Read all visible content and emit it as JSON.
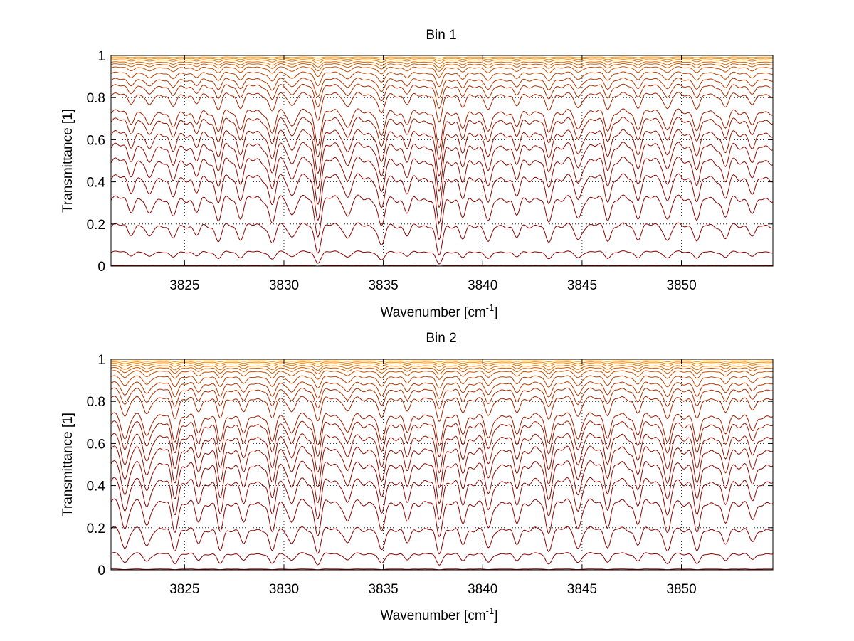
{
  "chart_data": [
    {
      "type": "line",
      "title": "Bin 1",
      "xlabel": "Wavenumber [cm",
      "xlabel_sup": "-1",
      "xlabel_end": "]",
      "ylabel": "Transmittance [1]",
      "xlim": [
        3821.3,
        3854.6
      ],
      "ylim": [
        0,
        1
      ],
      "grid": "dotted",
      "x_ticks": [
        3825,
        3830,
        3835,
        3840,
        3845,
        3850
      ],
      "x_tick_labels": [
        "3825",
        "3830",
        "3835",
        "3840",
        "3845",
        "3850"
      ],
      "y_ticks": [
        0,
        0.2,
        0.4,
        0.6,
        0.8,
        1
      ],
      "y_tick_labels": [
        "0",
        "0.2",
        "0.4",
        "0.6",
        "0.8",
        "1"
      ],
      "curve_levels": [
        0.003,
        0.07,
        0.2,
        0.33,
        0.43,
        0.51,
        0.58,
        0.64,
        0.7,
        0.74,
        0.82,
        0.86,
        0.89,
        0.92,
        0.945,
        0.96,
        0.97,
        0.98,
        0.987,
        0.993
      ],
      "absorption_lines": [
        {
          "x": 3822.3,
          "depth": 0.3
        },
        {
          "x": 3823.2,
          "depth": 0.5
        },
        {
          "x": 3824.4,
          "depth": 0.55
        },
        {
          "x": 3825.6,
          "depth": 0.4
        },
        {
          "x": 3826.7,
          "depth": 0.6
        },
        {
          "x": 3827.8,
          "depth": 0.5
        },
        {
          "x": 3829.4,
          "depth": 0.7
        },
        {
          "x": 3830.4,
          "depth": 0.45
        },
        {
          "x": 3831.7,
          "depth": 1.0
        },
        {
          "x": 3833.2,
          "depth": 0.5
        },
        {
          "x": 3834.9,
          "depth": 0.85
        },
        {
          "x": 3836.2,
          "depth": 0.4
        },
        {
          "x": 3837.8,
          "depth": 1.2
        },
        {
          "x": 3839.0,
          "depth": 0.55
        },
        {
          "x": 3840.3,
          "depth": 0.7
        },
        {
          "x": 3841.7,
          "depth": 0.5
        },
        {
          "x": 3843.3,
          "depth": 0.7
        },
        {
          "x": 3844.8,
          "depth": 0.6
        },
        {
          "x": 3846.3,
          "depth": 0.55
        },
        {
          "x": 3847.8,
          "depth": 0.5
        },
        {
          "x": 3849.3,
          "depth": 0.6
        },
        {
          "x": 3850.8,
          "depth": 0.6
        },
        {
          "x": 3852.2,
          "depth": 0.55
        },
        {
          "x": 3853.6,
          "depth": 0.45
        }
      ],
      "colors": [
        "#8b0000",
        "#ff9a00"
      ]
    },
    {
      "type": "line",
      "title": "Bin 2",
      "xlabel": "Wavenumber [cm",
      "xlabel_sup": "-1",
      "xlabel_end": "]",
      "ylabel": "Transmittance [1]",
      "xlim": [
        3821.3,
        3854.6
      ],
      "ylim": [
        0,
        1
      ],
      "grid": "dotted",
      "x_ticks": [
        3825,
        3830,
        3835,
        3840,
        3845,
        3850
      ],
      "x_tick_labels": [
        "3825",
        "3830",
        "3835",
        "3840",
        "3845",
        "3850"
      ],
      "y_ticks": [
        0,
        0.2,
        0.4,
        0.6,
        0.8,
        1
      ],
      "y_tick_labels": [
        "0",
        "0.2",
        "0.4",
        "0.6",
        "0.8",
        "1"
      ],
      "curve_levels": [
        0.004,
        0.08,
        0.2,
        0.33,
        0.43,
        0.51,
        0.58,
        0.64,
        0.7,
        0.74,
        0.82,
        0.86,
        0.89,
        0.92,
        0.945,
        0.96,
        0.97,
        0.98,
        0.987,
        0.993
      ],
      "absorption_lines": [
        {
          "x": 3822.0,
          "depth": 0.75
        },
        {
          "x": 3823.1,
          "depth": 0.7
        },
        {
          "x": 3824.5,
          "depth": 0.8
        },
        {
          "x": 3825.7,
          "depth": 0.55
        },
        {
          "x": 3826.8,
          "depth": 0.85
        },
        {
          "x": 3828.0,
          "depth": 0.6
        },
        {
          "x": 3829.4,
          "depth": 0.9
        },
        {
          "x": 3830.4,
          "depth": 0.6
        },
        {
          "x": 3831.7,
          "depth": 0.9
        },
        {
          "x": 3833.2,
          "depth": 0.6
        },
        {
          "x": 3834.9,
          "depth": 0.9
        },
        {
          "x": 3836.2,
          "depth": 0.55
        },
        {
          "x": 3837.8,
          "depth": 0.95
        },
        {
          "x": 3839.0,
          "depth": 0.6
        },
        {
          "x": 3840.3,
          "depth": 0.8
        },
        {
          "x": 3841.7,
          "depth": 0.6
        },
        {
          "x": 3843.3,
          "depth": 0.85
        },
        {
          "x": 3844.8,
          "depth": 0.75
        },
        {
          "x": 3846.3,
          "depth": 0.65
        },
        {
          "x": 3847.8,
          "depth": 0.6
        },
        {
          "x": 3849.3,
          "depth": 0.95
        },
        {
          "x": 3850.8,
          "depth": 0.9
        },
        {
          "x": 3852.2,
          "depth": 0.65
        },
        {
          "x": 3853.6,
          "depth": 0.55
        }
      ],
      "colors": [
        "#8b0000",
        "#ff9a00"
      ]
    }
  ]
}
